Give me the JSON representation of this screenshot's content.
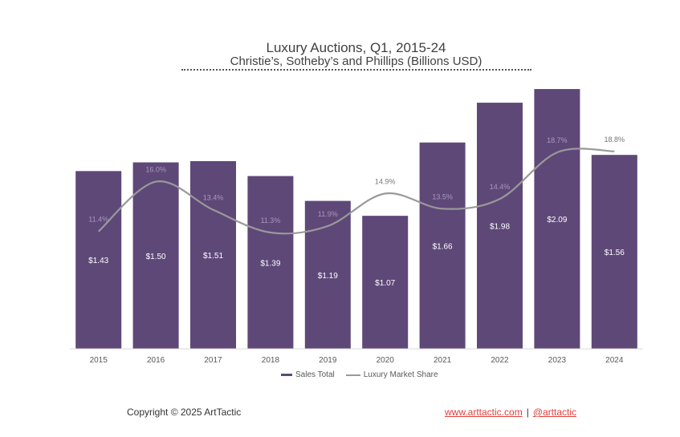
{
  "chart_data": {
    "type": "bar",
    "title": "Luxury Auctions, Q1, 2015-24",
    "subtitle": "Christie’s, Sotheby’s and Phillips (Billions USD)",
    "categories": [
      "2015",
      "2016",
      "2017",
      "2018",
      "2019",
      "2020",
      "2021",
      "2022",
      "2023",
      "2024"
    ],
    "series": [
      {
        "name": "Sales Total",
        "type": "bar",
        "values": [
          1.43,
          1.5,
          1.51,
          1.39,
          1.19,
          1.07,
          1.66,
          1.98,
          2.09,
          1.56
        ],
        "labels": [
          "$1.43",
          "$1.50",
          "$1.51",
          "$1.39",
          "$1.19",
          "$1.07",
          "$1.66",
          "$1.98",
          "$2.09",
          "$1.56"
        ],
        "color": "#5e4878"
      },
      {
        "name": "Luxury Market Share",
        "type": "line",
        "values": [
          11.4,
          16.0,
          13.4,
          11.3,
          11.9,
          14.9,
          13.5,
          14.4,
          18.7,
          18.8
        ],
        "labels": [
          "11.4%",
          "16.0%",
          "13.4%",
          "11.3%",
          "11.9%",
          "14.9%",
          "13.5%",
          "14.4%",
          "18.7%",
          "18.8%"
        ],
        "color": "#999999"
      }
    ],
    "legend": "bottom",
    "grid": false
  },
  "footer": {
    "copyright": "Copyright © 2025 ArtTactic",
    "website": "www.arttactic.com",
    "separator": "|",
    "handle": "@arttactic"
  },
  "colors": {
    "bar": "#5e4878",
    "line": "#999999",
    "link": "#e0403c"
  }
}
